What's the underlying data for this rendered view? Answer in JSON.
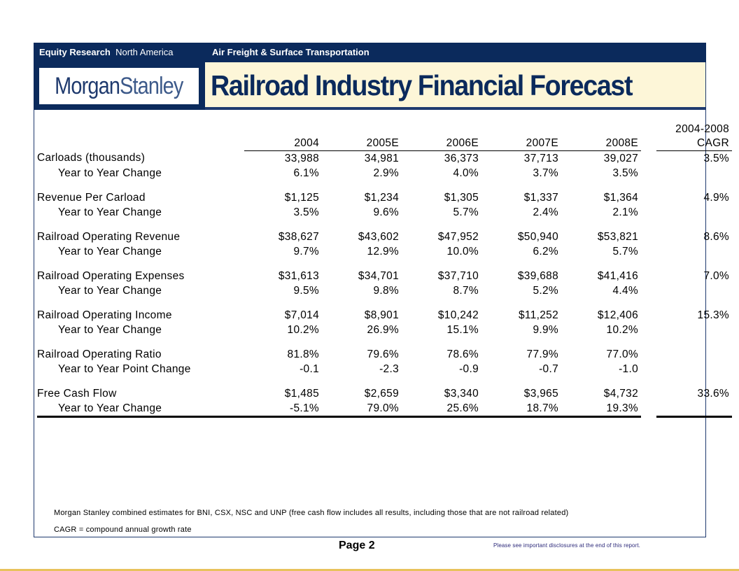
{
  "header": {
    "equity_research": "Equity Research",
    "region": "North America",
    "sector": "Air Freight & Surface Transportation"
  },
  "logo": {
    "part1": "Morgan",
    "part2": "Stanley"
  },
  "title": "Railroad Industry Financial Forecast",
  "table": {
    "columns": [
      "2004",
      "2005E",
      "2006E",
      "2007E",
      "2008E"
    ],
    "cagr_header_line1": "2004-2008",
    "cagr_header_line2": "CAGR",
    "rows": [
      {
        "label": "Carloads (thousands)",
        "values": [
          "33,988",
          "34,981",
          "36,373",
          "37,713",
          "39,027"
        ],
        "cagr": "3.5%",
        "sub_label": "Year to Year Change",
        "sub_values": [
          "6.1%",
          "2.9%",
          "4.0%",
          "3.7%",
          "3.5%"
        ]
      },
      {
        "label": "Revenue Per Carload",
        "values": [
          "$1,125",
          "$1,234",
          "$1,305",
          "$1,337",
          "$1,364"
        ],
        "cagr": "4.9%",
        "sub_label": "Year to Year Change",
        "sub_values": [
          "3.5%",
          "9.6%",
          "5.7%",
          "2.4%",
          "2.1%"
        ]
      },
      {
        "label": "Railroad Operating Revenue",
        "values": [
          "$38,627",
          "$43,602",
          "$47,952",
          "$50,940",
          "$53,821"
        ],
        "cagr": "8.6%",
        "sub_label": "Year to Year Change",
        "sub_values": [
          "9.7%",
          "12.9%",
          "10.0%",
          "6.2%",
          "5.7%"
        ]
      },
      {
        "label": "Railroad Operating Expenses",
        "values": [
          "$31,613",
          "$34,701",
          "$37,710",
          "$39,688",
          "$41,416"
        ],
        "cagr": "7.0%",
        "sub_label": "Year to Year Change",
        "sub_values": [
          "9.5%",
          "9.8%",
          "8.7%",
          "5.2%",
          "4.4%"
        ]
      },
      {
        "label": "Railroad Operating Income",
        "values": [
          "$7,014",
          "$8,901",
          "$10,242",
          "$11,252",
          "$12,406"
        ],
        "cagr": "15.3%",
        "sub_label": "Year to Year Change",
        "sub_values": [
          "10.2%",
          "26.9%",
          "15.1%",
          "9.9%",
          "10.2%"
        ]
      },
      {
        "label": "Railroad Operating Ratio",
        "values": [
          "81.8%",
          "79.6%",
          "78.6%",
          "77.9%",
          "77.0%"
        ],
        "cagr": "",
        "sub_label": "Year to Year Point Change",
        "sub_values": [
          "-0.1",
          "-2.3",
          "-0.9",
          "-0.7",
          "-1.0"
        ]
      },
      {
        "label": "Free Cash Flow",
        "values": [
          "$1,485",
          "$2,659",
          "$3,340",
          "$3,965",
          "$4,732"
        ],
        "cagr": "33.6%",
        "sub_label": "Year to Year Change",
        "sub_values": [
          "-5.1%",
          "79.0%",
          "25.6%",
          "18.7%",
          "19.3%"
        ]
      }
    ]
  },
  "footnotes": {
    "note1": "Morgan Stanley combined estimates for BNI, CSX, NSC and UNP (free cash flow includes all results, including those that are not railroad related)",
    "note2": "CAGR = compound annual growth rate"
  },
  "footer": {
    "page": "Page 2",
    "disclaimer": "Please see important disclosures at the end of this report."
  },
  "colors": {
    "navy": "#0b2a5c",
    "title_bg": "#fdf6d8",
    "bottom_rule": "#e8c25c"
  }
}
